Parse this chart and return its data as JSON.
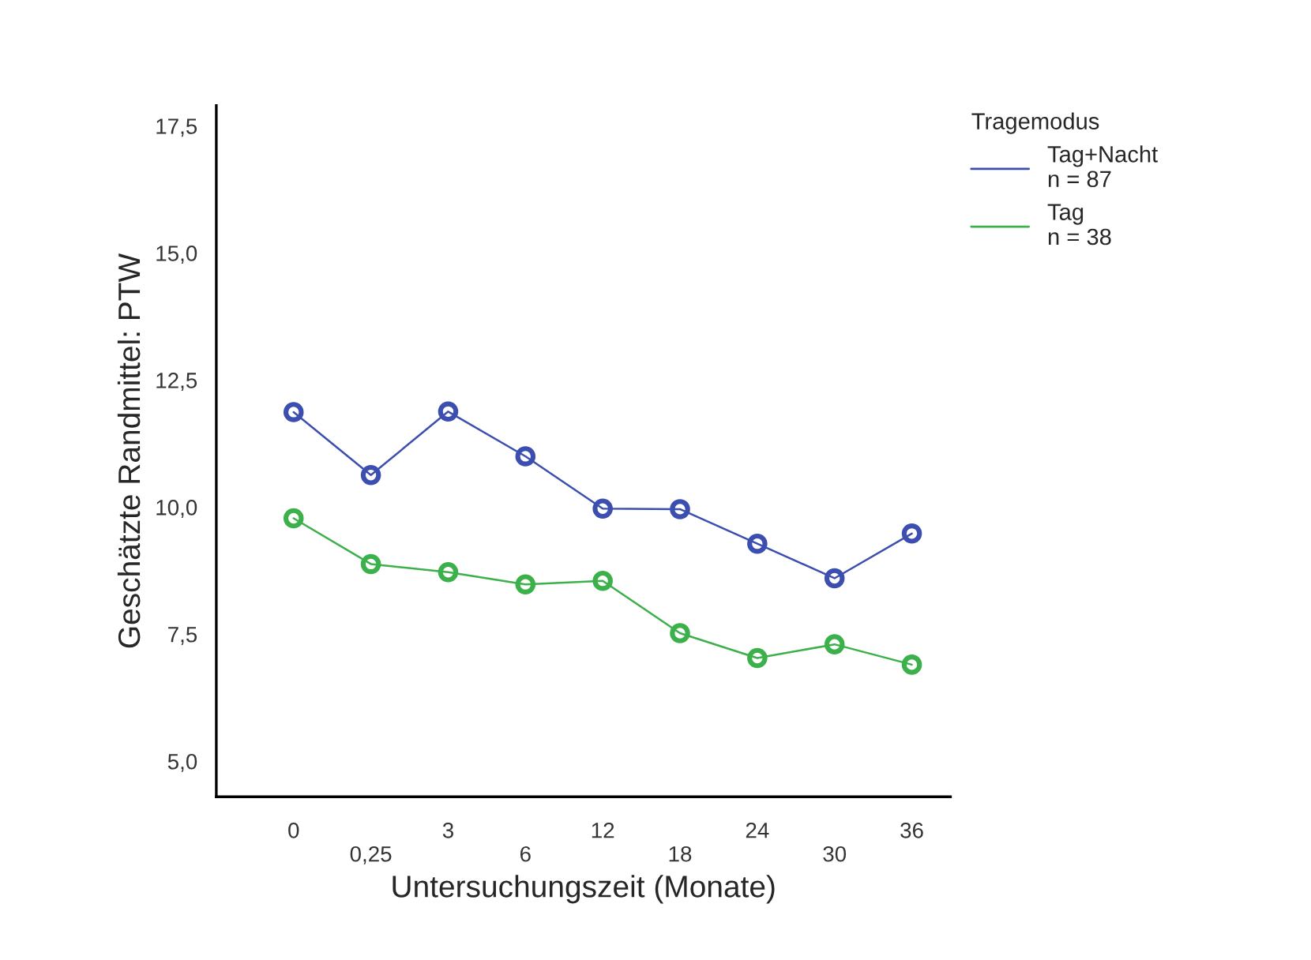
{
  "chart_data": {
    "type": "line",
    "xlabel": "Untersuchungszeit (Monate)",
    "ylabel": "Geschätzte Randmittel: PTW",
    "legend_title": "Tragemodus",
    "categories": [
      "0",
      "0,25",
      "3",
      "6",
      "12",
      "18",
      "24",
      "30",
      "36"
    ],
    "series": [
      {
        "name": "Tag+Nacht\nn = 87",
        "color": "#3c4fb0",
        "values": [
          11.87,
          10.63,
          11.88,
          11.0,
          9.97,
          9.96,
          9.28,
          8.6,
          9.48
        ]
      },
      {
        "name": "Tag\nn = 38",
        "color": "#3cb04a",
        "values": [
          9.78,
          8.88,
          8.72,
          8.48,
          8.55,
          7.52,
          7.03,
          7.3,
          6.9
        ]
      }
    ],
    "ylim": [
      4.3,
      17.9
    ],
    "yticks": [
      {
        "value": 5.0,
        "label": "5,0"
      },
      {
        "value": 7.5,
        "label": "7,5"
      },
      {
        "value": 10.0,
        "label": "10,0"
      },
      {
        "value": 12.5,
        "label": "12,5"
      },
      {
        "value": 15.0,
        "label": "15,0"
      },
      {
        "value": 17.5,
        "label": "17,5"
      }
    ],
    "grid": false,
    "legend": "top right",
    "marker": "circle",
    "line_style": "solid"
  }
}
